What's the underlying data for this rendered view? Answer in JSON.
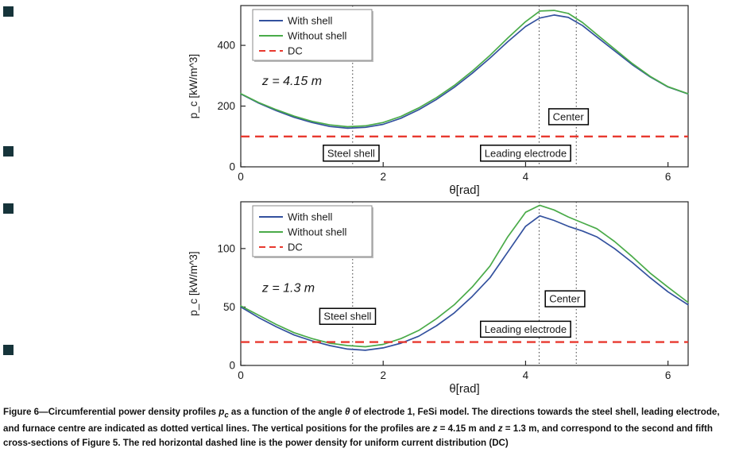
{
  "figure_label": "Figure 6",
  "edge_marks": {
    "color": "#16343a",
    "positions_y": [
      8,
      184,
      256,
      434
    ]
  },
  "colors": {
    "with_shell": "#33519e",
    "without_shell": "#4aab49",
    "dc": "#e8392f",
    "axis": "#262626",
    "vline": "#3d3d3d",
    "legend_border": "#8a8a8a",
    "box_border": "#000000"
  },
  "chart_data": [
    {
      "type": "line",
      "title": "",
      "annotation": {
        "text": "z = 4.15 m",
        "x": 0.3,
        "y": 270
      },
      "xlabel": "θ[rad]",
      "ylabel": "p_c [kW/m^3]",
      "xlim": [
        0,
        6.283
      ],
      "ylim": [
        0,
        531
      ],
      "xticks": [
        0,
        2,
        4,
        6
      ],
      "yticks": [
        0,
        200,
        400
      ],
      "grid": false,
      "legend_position": "top-left",
      "vlines": [
        1.571,
        4.19,
        4.712
      ],
      "x": [
        0,
        0.25,
        0.5,
        0.75,
        1,
        1.25,
        1.5,
        1.75,
        2,
        2.25,
        2.5,
        2.75,
        3,
        3.25,
        3.5,
        3.75,
        4,
        4.2,
        4.4,
        4.6,
        4.8,
        5,
        5.25,
        5.5,
        5.75,
        6,
        6.28
      ],
      "series": [
        {
          "name": "With shell",
          "color": "#33519e",
          "values": [
            240,
            210,
            185,
            163,
            146,
            133,
            127,
            130,
            140,
            160,
            188,
            222,
            262,
            308,
            358,
            412,
            462,
            490,
            500,
            492,
            465,
            428,
            382,
            336,
            296,
            263,
            240
          ]
        },
        {
          "name": "Without shell",
          "color": "#4aab49",
          "values": [
            241,
            212,
            188,
            167,
            150,
            138,
            132,
            135,
            146,
            166,
            194,
            228,
            268,
            315,
            367,
            424,
            478,
            513,
            515,
            505,
            475,
            436,
            388,
            340,
            298,
            264,
            241
          ]
        },
        {
          "name": "DC",
          "color": "#e8392f",
          "dashed": true,
          "constant": 100
        }
      ],
      "boxed_labels": [
        {
          "text": "Steel shell",
          "x": 1.55,
          "y": 45
        },
        {
          "text": "Leading electrode",
          "x": 4.0,
          "y": 45
        },
        {
          "text": "Center",
          "x": 4.6,
          "y": 165
        }
      ]
    },
    {
      "type": "line",
      "title": "",
      "annotation": {
        "text": "z = 1.3 m",
        "x": 0.3,
        "y": 63
      },
      "xlabel": "θ[rad]",
      "ylabel": "p_c [kW/m^3]",
      "xlim": [
        0,
        6.283
      ],
      "ylim": [
        0,
        140
      ],
      "xticks": [
        0,
        2,
        4,
        6
      ],
      "yticks": [
        0,
        50,
        100
      ],
      "grid": false,
      "legend_position": "top-left",
      "vlines": [
        1.571,
        4.19,
        4.712
      ],
      "x": [
        0,
        0.25,
        0.5,
        0.75,
        1,
        1.25,
        1.5,
        1.75,
        2,
        2.25,
        2.5,
        2.75,
        3,
        3.25,
        3.5,
        3.75,
        4,
        4.2,
        4.4,
        4.6,
        4.8,
        5,
        5.25,
        5.5,
        5.75,
        6,
        6.28
      ],
      "series": [
        {
          "name": "With shell",
          "color": "#33519e",
          "values": [
            50,
            41,
            33,
            26,
            21,
            17,
            14,
            13,
            15,
            19,
            25,
            34,
            45,
            59,
            75,
            97,
            119,
            128,
            124,
            119,
            115,
            110,
            100,
            88,
            75,
            63,
            52
          ]
        },
        {
          "name": "Without shell",
          "color": "#4aab49",
          "values": [
            51,
            43,
            35,
            28,
            23,
            19,
            17,
            16,
            18,
            23,
            30,
            40,
            52,
            67,
            85,
            110,
            131,
            137,
            133,
            127,
            122,
            117,
            106,
            93,
            79,
            67,
            54
          ]
        },
        {
          "name": "DC",
          "color": "#e8392f",
          "dashed": true,
          "constant": 20
        }
      ],
      "boxed_labels": [
        {
          "text": "Steel shell",
          "x": 1.5,
          "y": 42
        },
        {
          "text": "Leading electrode",
          "x": 4.0,
          "y": 31
        },
        {
          "text": "Center",
          "x": 4.55,
          "y": 57
        }
      ]
    }
  ],
  "caption": {
    "segments": [
      {
        "text": "Figure 6—Circumferential power density profiles "
      },
      {
        "text": "p",
        "style": "italic"
      },
      {
        "text": "c",
        "style": "sub"
      },
      {
        "text": " as a function of the angle "
      },
      {
        "text": "θ",
        "style": "italic"
      },
      {
        "text": " of electrode 1, FeSi model. The directions towards the steel shell, leading electrode, and furnace centre are indicated as dotted vertical lines. The vertical positions for the profiles are "
      },
      {
        "text": "z",
        "style": "italic"
      },
      {
        "text": " = 4.15 m and "
      },
      {
        "text": "z",
        "style": "italic"
      },
      {
        "text": " = 1.3 m, and correspond to the second and fifth cross-sections of Figure 5. The red horizontal dashed line is the power density for uniform current distribution (DC)"
      }
    ]
  }
}
